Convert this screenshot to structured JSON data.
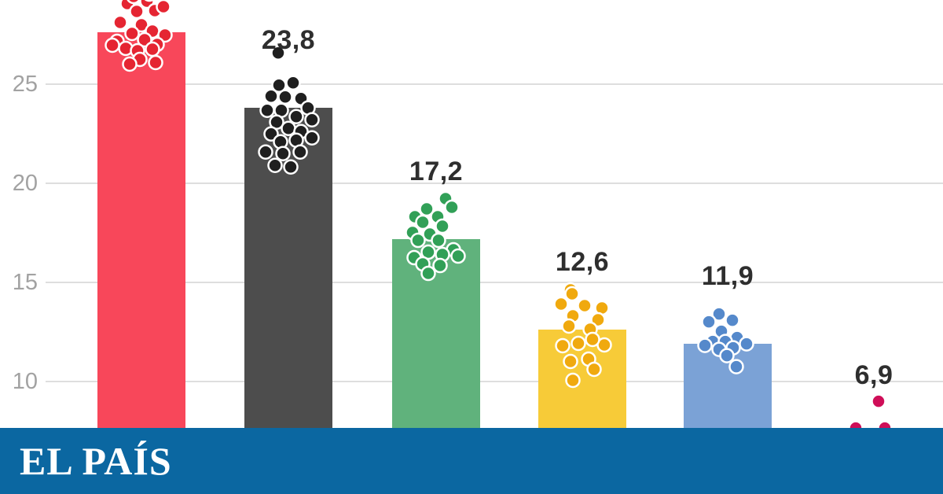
{
  "page": {
    "background": "#ffffff"
  },
  "brand": {
    "logo_text": "EL PAÍS",
    "banner_color": "#0b67a1",
    "logo_color": "#ffffff"
  },
  "y_axis": {
    "tick_labels": [
      "25",
      "20",
      "15",
      "10"
    ],
    "tick_values": [
      25,
      20,
      15,
      10
    ],
    "label_color": "#a2a2a2",
    "gridline_color": "#dedede"
  },
  "chart_data": {
    "type": "bar",
    "subtype": "bars-with-beeswarm-dot-overlay",
    "title": "",
    "xlabel": "",
    "ylabel": "",
    "ylim": [
      0,
      28
    ],
    "grid": true,
    "legend": false,
    "value_label_color": "#2e2e2e",
    "dot_stroke_color": "#ffffff",
    "series": [
      {
        "name": "series-1-red",
        "label": "",
        "value": 27.6,
        "bar_color": "#f8475a",
        "dot_color": "#e52532",
        "dots": [
          [
            -18,
            -37
          ],
          [
            7,
            -40
          ],
          [
            -6,
            -27
          ],
          [
            17,
            -28
          ],
          [
            -27,
            -13
          ],
          [
            0,
            -10
          ],
          [
            -12,
            1
          ],
          [
            14,
            -2
          ],
          [
            30,
            3
          ],
          [
            -31,
            11
          ],
          [
            4,
            9
          ],
          [
            20,
            15
          ],
          [
            -37,
            16
          ],
          [
            -20,
            20
          ],
          [
            -5,
            23
          ],
          [
            14,
            21
          ],
          [
            -10,
            -46
          ],
          [
            10,
            -49
          ],
          [
            28,
            -33
          ],
          [
            -2,
            34
          ],
          [
            18,
            38
          ],
          [
            -15,
            40
          ]
        ]
      },
      {
        "name": "series-2-dark",
        "label": "23,8",
        "value": 23.8,
        "bar_color": "#4d4d4d",
        "dot_color": "#1f1f1f",
        "dots": [
          [
            -13,
            -70
          ],
          [
            -12,
            -29
          ],
          [
            6,
            -32
          ],
          [
            -22,
            -15
          ],
          [
            -4,
            -14
          ],
          [
            16,
            -12
          ],
          [
            -27,
            3
          ],
          [
            -9,
            3
          ],
          [
            25,
            0
          ],
          [
            10,
            11
          ],
          [
            -15,
            18
          ],
          [
            30,
            15
          ],
          [
            0,
            26
          ],
          [
            -22,
            33
          ],
          [
            16,
            30
          ],
          [
            -10,
            43
          ],
          [
            10,
            41
          ],
          [
            30,
            38
          ],
          [
            -29,
            56
          ],
          [
            -7,
            58
          ],
          [
            15,
            56
          ],
          [
            -17,
            73
          ],
          [
            3,
            75
          ]
        ]
      },
      {
        "name": "series-3-green",
        "label": "17,2",
        "value": 17.2,
        "bar_color": "#60b27c",
        "dot_color": "#31a057",
        "dots": [
          [
            12,
            -51
          ],
          [
            -12,
            -38
          ],
          [
            20,
            -40
          ],
          [
            -27,
            -28
          ],
          [
            2,
            -28
          ],
          [
            -17,
            -21
          ],
          [
            8,
            -16
          ],
          [
            -30,
            -8
          ],
          [
            -8,
            -6
          ],
          [
            -23,
            2
          ],
          [
            3,
            2
          ],
          [
            22,
            14
          ],
          [
            -10,
            17
          ],
          [
            8,
            20
          ],
          [
            -28,
            24
          ],
          [
            28,
            22
          ],
          [
            -17,
            32
          ],
          [
            5,
            34
          ],
          [
            -10,
            44
          ]
        ]
      },
      {
        "name": "series-4-yellow",
        "label": "12,6",
        "value": 12.6,
        "bar_color": "#f7cb38",
        "dot_color": "#f0a90e",
        "dots": [
          [
            -15,
            -51
          ],
          [
            -13,
            -46
          ],
          [
            -27,
            -33
          ],
          [
            3,
            -31
          ],
          [
            25,
            -28
          ],
          [
            -12,
            -18
          ],
          [
            20,
            -13
          ],
          [
            -17,
            -5
          ],
          [
            10,
            -1
          ],
          [
            28,
            19
          ],
          [
            -25,
            20
          ],
          [
            -5,
            17
          ],
          [
            13,
            12
          ],
          [
            -15,
            40
          ],
          [
            8,
            37
          ],
          [
            15,
            50
          ],
          [
            -12,
            64
          ]
        ]
      },
      {
        "name": "series-5-blue",
        "label": "11,9",
        "value": 11.9,
        "bar_color": "#7ba2d6",
        "dot_color": "#5589cb",
        "dots": [
          [
            -11,
            -38
          ],
          [
            -24,
            -28
          ],
          [
            6,
            -30
          ],
          [
            -8,
            -16
          ],
          [
            12,
            -8
          ],
          [
            -19,
            -3
          ],
          [
            -3,
            -3
          ],
          [
            -29,
            2
          ],
          [
            -11,
            7
          ],
          [
            7,
            5
          ],
          [
            24,
            0
          ],
          [
            -1,
            15
          ],
          [
            11,
            29
          ]
        ]
      },
      {
        "name": "series-6-magenta",
        "label": "6,9",
        "value": 6.9,
        "bar_color": "#cf0e58",
        "dot_color": "#cf0e58",
        "dots": [
          [
            6,
            -53
          ],
          [
            -23,
            -19
          ],
          [
            14,
            -19
          ]
        ]
      }
    ]
  }
}
